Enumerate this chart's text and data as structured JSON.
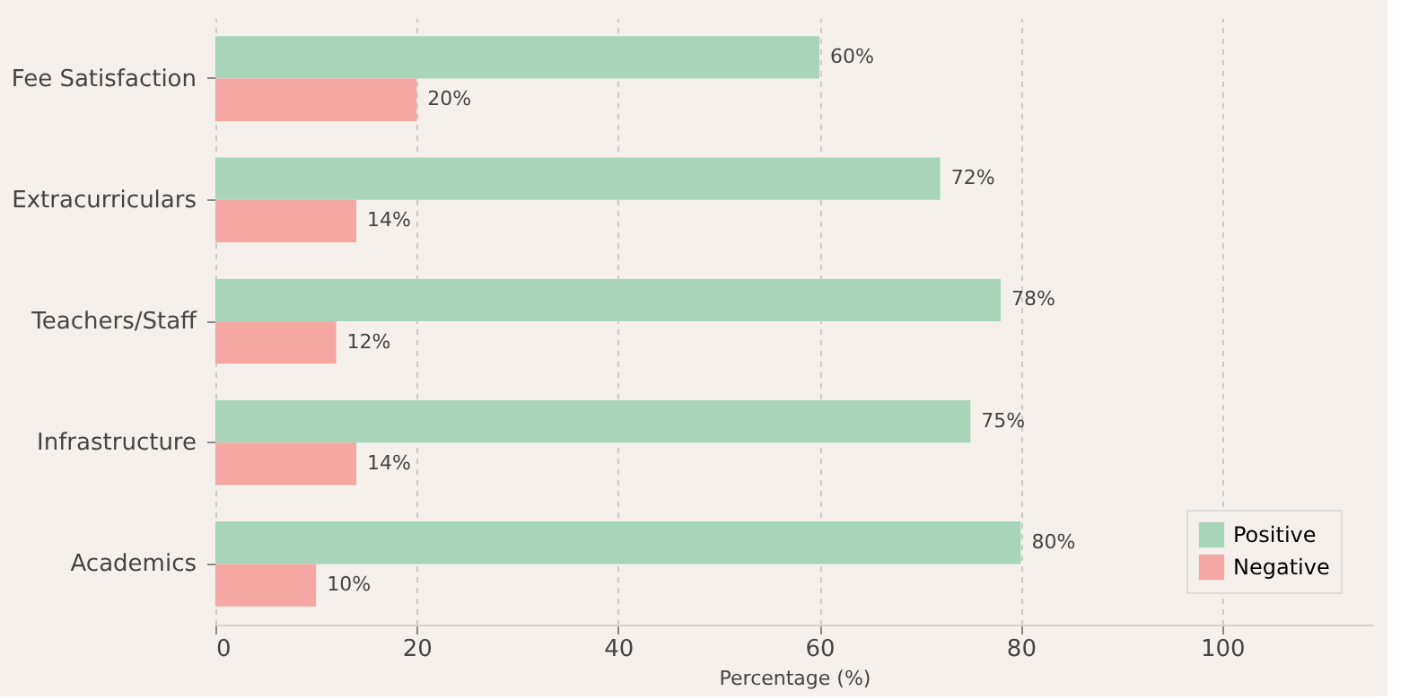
{
  "chart_data": {
    "type": "bar",
    "orientation": "horizontal",
    "xlabel": "Percentage (%)",
    "categories": [
      "Fee Satisfaction",
      "Extracurriculars",
      "Teachers/Staff",
      "Infrastructure",
      "Academics"
    ],
    "series": [
      {
        "name": "Positive",
        "color": "#a8d5ba",
        "values": [
          60,
          72,
          78,
          75,
          80
        ],
        "value_labels": [
          "60%",
          "72%",
          "78%",
          "75%",
          "80%"
        ]
      },
      {
        "name": "Negative",
        "color": "#f4a7a3",
        "values": [
          20,
          14,
          12,
          14,
          10
        ],
        "value_labels": [
          "20%",
          "14%",
          "12%",
          "14%",
          "10%"
        ]
      }
    ],
    "xlim": [
      0,
      115
    ],
    "xticks": [
      0,
      20,
      40,
      60,
      80,
      100
    ],
    "grid": "x",
    "legend": "bottom right"
  }
}
